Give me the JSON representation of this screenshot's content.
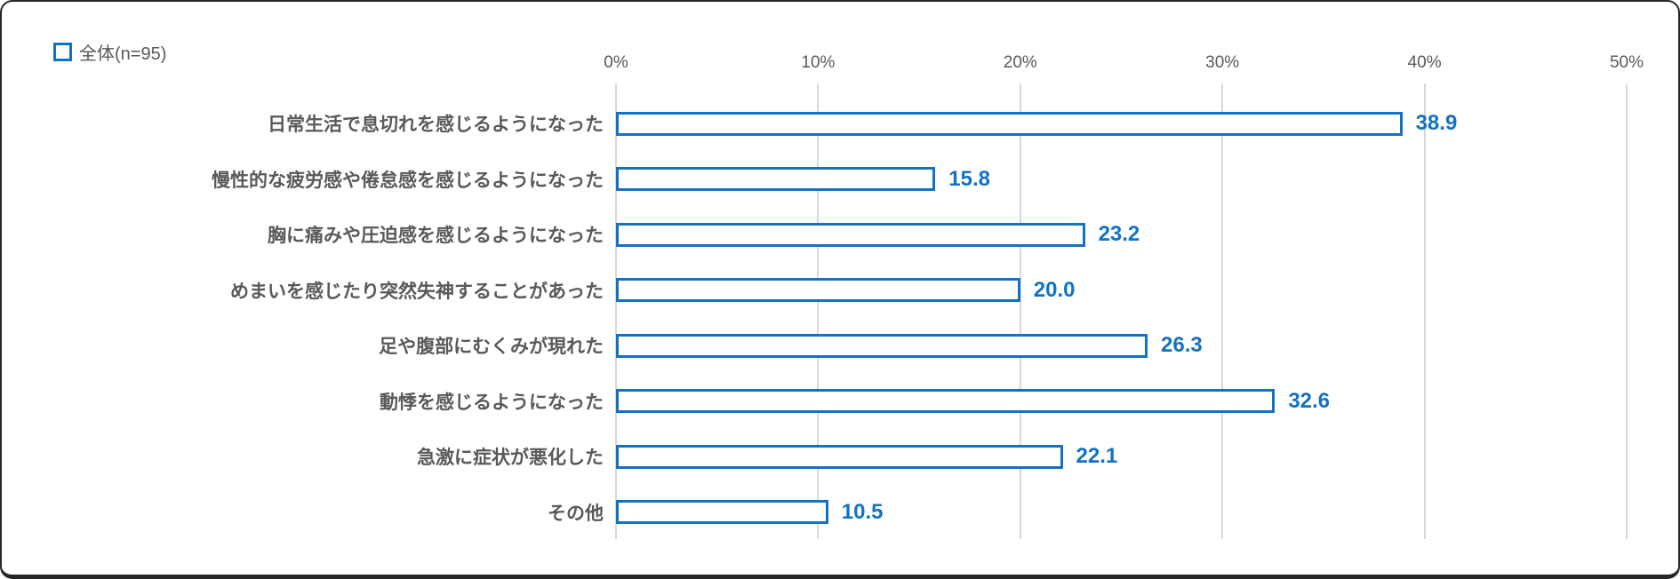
{
  "legend": {
    "label": "全体(n=95)"
  },
  "colors": {
    "accent": "#1272C3",
    "axis_text": "#595959",
    "gridline": "#D8D8D8",
    "bar_fill": "#FFFFFF"
  },
  "chart_data": {
    "type": "bar",
    "orientation": "horizontal",
    "series_name": "全体(n=95)",
    "categories": [
      "日常生活で息切れを感じるようになった",
      "慢性的な疲労感や倦怠感を感じるようになった",
      "胸に痛みや圧迫感を感じるようになった",
      "めまいを感じたり突然失神することがあった",
      "足や腹部にむくみが現れた",
      "動悸を感じるようになった",
      "急激に症状が悪化した",
      "その他"
    ],
    "values": [
      38.9,
      15.8,
      23.2,
      20.0,
      26.3,
      32.6,
      22.1,
      10.5
    ],
    "value_labels": [
      "38.9",
      "15.8",
      "23.2",
      "20.0",
      "26.3",
      "32.6",
      "22.1",
      "10.5"
    ],
    "xlim": [
      0,
      50
    ],
    "x_ticks": [
      "0%",
      "10%",
      "20%",
      "30%",
      "40%",
      "50%"
    ],
    "grid": true,
    "legend_position": "top-left",
    "title": "",
    "xlabel": "",
    "ylabel": ""
  }
}
